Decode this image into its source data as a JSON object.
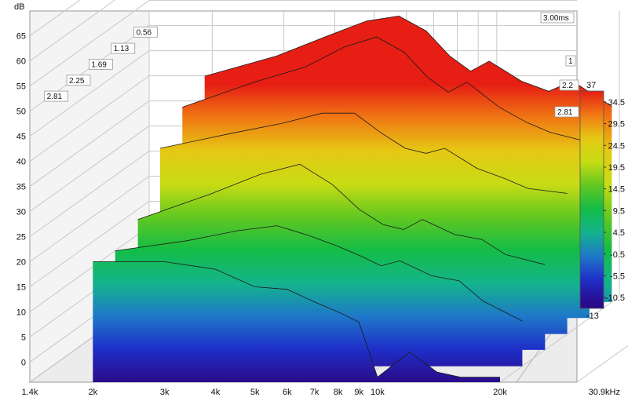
{
  "chart_data": {
    "type": "area",
    "title": "",
    "ylabel": "dB",
    "xlabel": "",
    "x_scale": "log",
    "xlim": [
      1.4,
      30.9
    ],
    "ylim": [
      -4,
      67
    ],
    "grid": true,
    "y_ticks": [
      0,
      5,
      10,
      15,
      20,
      25,
      30,
      35,
      40,
      45,
      50,
      55,
      60,
      65
    ],
    "x_ticks": [
      {
        "v": 1.4,
        "label": "1.4k"
      },
      {
        "v": 2,
        "label": "2k"
      },
      {
        "v": 3,
        "label": "3k"
      },
      {
        "v": 4,
        "label": "4k"
      },
      {
        "v": 5,
        "label": "5k"
      },
      {
        "v": 6,
        "label": "6k"
      },
      {
        "v": 7,
        "label": "7k"
      },
      {
        "v": 8,
        "label": "8k"
      },
      {
        "v": 9,
        "label": "9k"
      },
      {
        "v": 10,
        "label": "10k"
      },
      {
        "v": 20,
        "label": "20k"
      },
      {
        "v": 30.9,
        "label": "30.9kHz"
      }
    ],
    "time_axis_labels": [
      "0.56",
      "1.13",
      "1.69",
      "2.25",
      "2.81",
      "3.00ms",
      "1",
      "2.2",
      "2.81"
    ],
    "colorbar": {
      "max_label": "37",
      "min_label": "-13",
      "ticks": [
        "34.5",
        "29.5",
        "24.5",
        "19.5",
        "14.5",
        "9.5",
        "4.5",
        "-0.5",
        "-5.5",
        "-10.5"
      ],
      "range": [
        -13,
        37
      ],
      "colors": [
        "#2a0a8a",
        "#1e2fc8",
        "#1e78c8",
        "#14b48c",
        "#14bc46",
        "#62c820",
        "#c8dc14",
        "#e6c814",
        "#f07814",
        "#e61e14"
      ]
    },
    "series": [
      {
        "t": 0.0,
        "freqs": [
          2.0,
          3.0,
          4.0,
          5.0,
          6.0,
          7.0,
          8.0,
          9.0,
          10.0,
          12.0,
          14.0,
          16.0,
          20.0
        ],
        "values": [
          20,
          20,
          18.5,
          15,
          14.5,
          12,
          10,
          8,
          -3,
          2,
          -2,
          -3,
          -3
        ]
      },
      {
        "t": 0.56,
        "freqs": [
          2.0,
          3.0,
          4.0,
          5.0,
          6.0,
          7.0,
          8.0,
          9.0,
          10.0,
          12.0,
          14.0,
          16.0,
          20.0
        ],
        "values": [
          19,
          21,
          23,
          24,
          22,
          20,
          18,
          16,
          17,
          14,
          13,
          9,
          5
        ]
      },
      {
        "t": 1.13,
        "freqs": [
          2.0,
          3.0,
          4.0,
          5.0,
          6.0,
          7.0,
          8.0,
          9.0,
          10.0,
          12.0,
          14.0,
          16.0,
          20.0
        ],
        "values": [
          22,
          27,
          31,
          33,
          29,
          24,
          21,
          20,
          22,
          19,
          18,
          15,
          13
        ]
      },
      {
        "t": 1.69,
        "freqs": [
          2.0,
          3.0,
          4.0,
          5.0,
          6.0,
          7.0,
          8.0,
          9.0,
          10.0,
          12.0,
          14.0,
          16.0,
          20.0
        ],
        "values": [
          33,
          36,
          38,
          40,
          40,
          36,
          33,
          32,
          33,
          29,
          27,
          25,
          24
        ]
      },
      {
        "t": 2.25,
        "freqs": [
          2.0,
          3.0,
          4.0,
          5.0,
          6.0,
          7.0,
          8.0,
          9.0,
          10.0,
          12.0,
          14.0,
          16.0,
          20.0
        ],
        "values": [
          38,
          43,
          46,
          50,
          52,
          49,
          44,
          41,
          43,
          38,
          35,
          33,
          31
        ]
      },
      {
        "t": 2.81,
        "freqs": [
          2.0,
          3.0,
          4.0,
          5.0,
          6.0,
          7.0,
          8.0,
          9.0,
          10.0,
          12.0,
          14.0,
          16.0,
          20.0
        ],
        "values": [
          41,
          45,
          49,
          52,
          53,
          50,
          45,
          42,
          44,
          40,
          38,
          40,
          35
        ]
      }
    ]
  }
}
